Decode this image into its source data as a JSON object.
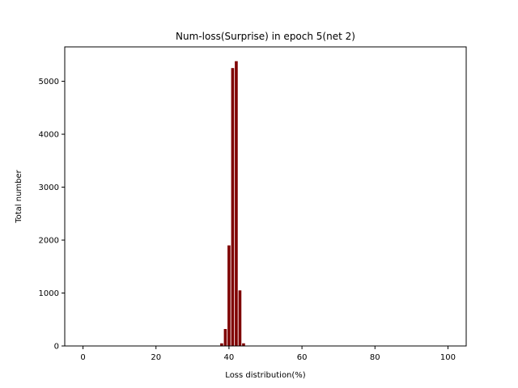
{
  "chart_data": {
    "type": "bar",
    "title": "Num-loss(Surprise) in epoch 5(net 2)",
    "xlabel": "Loss distribution(%)",
    "ylabel": "Total number",
    "xlim": [
      -5,
      105
    ],
    "ylim": [
      0,
      5650
    ],
    "xticks": [
      0,
      20,
      40,
      60,
      80,
      100
    ],
    "yticks": [
      0,
      1000,
      2000,
      3000,
      4000,
      5000
    ],
    "bar_color": "#7f0000",
    "bar_width": 0.8,
    "x": [
      38,
      39,
      40,
      41,
      42,
      43,
      44
    ],
    "values": [
      50,
      320,
      1900,
      5250,
      5380,
      1050,
      50
    ],
    "grid": false,
    "legend": "none"
  }
}
